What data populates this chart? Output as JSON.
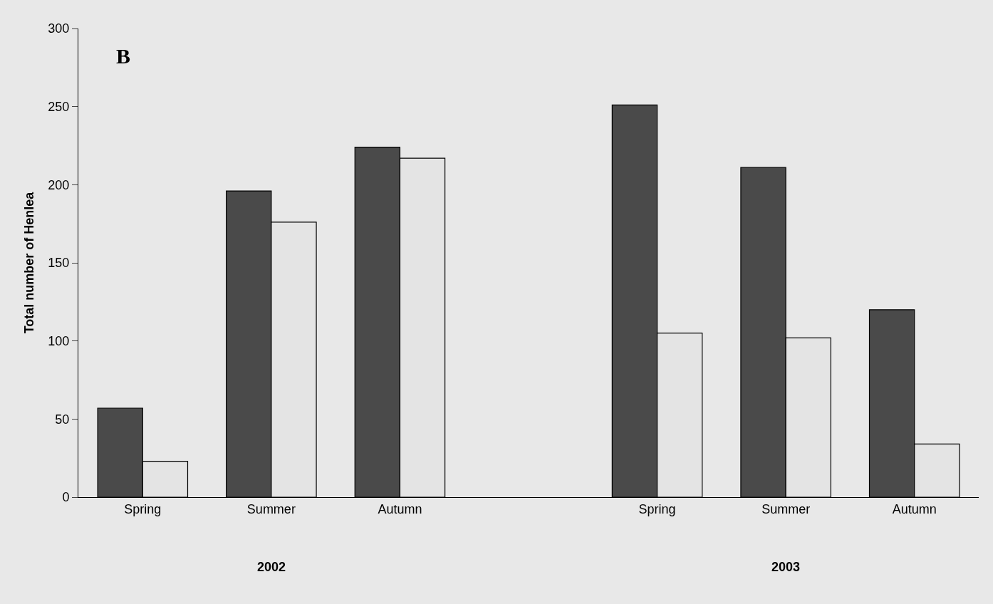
{
  "chart_data": {
    "type": "bar",
    "ylabel": "Total number of Henlea",
    "categories": [
      "Spring",
      "Summer",
      "Autumn",
      null,
      "Spring",
      "Summer",
      "Autumn"
    ],
    "series": [
      {
        "color": "#4a4a4a",
        "values": [
          57,
          196,
          224,
          null,
          251,
          211,
          120
        ]
      },
      {
        "color": "#e4e4e4",
        "values": [
          23,
          176,
          217,
          null,
          105,
          102,
          34
        ]
      }
    ],
    "annotations": [
      "B",
      "2002",
      "2003"
    ],
    "ylim": [
      0,
      300
    ],
    "yticks": [
      0,
      50,
      100,
      150,
      200,
      250,
      300
    ],
    "grid": false,
    "legend": false
  }
}
